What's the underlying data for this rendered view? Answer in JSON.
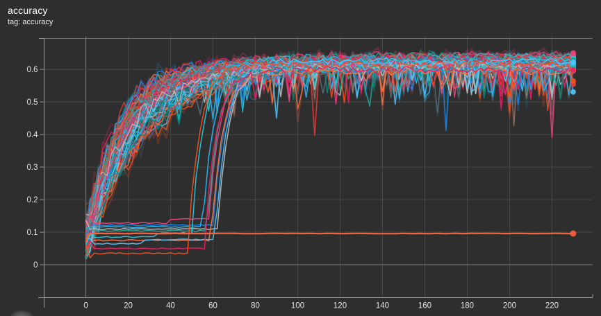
{
  "chart_data": {
    "type": "line",
    "title": "accuracy",
    "subtitle": "tag: accuracy",
    "xlabel": "",
    "ylabel": "",
    "x_range": [
      -19.7,
      239.2
    ],
    "y_range": [
      -0.101,
      0.695
    ],
    "x_ticks": [
      0,
      20,
      40,
      60,
      80,
      100,
      120,
      140,
      160,
      180,
      200,
      220
    ],
    "y_ticks": [
      0,
      0.1,
      0.2,
      0.3,
      0.4,
      0.5,
      0.6
    ],
    "y_tick_labels": [
      "0",
      "0.1",
      "0.2",
      "0.3",
      "0.4",
      "0.5",
      "0.6"
    ],
    "grid": true,
    "legend": "none",
    "seed": 7,
    "colors": {
      "background": "#2e2e2e",
      "grid": "#474747",
      "zero_line": "#7d7d7d",
      "axis": "#9a9a9a",
      "top_border": "#6e6e6e",
      "tick_label": "#e2e2e2",
      "title": "#ffffff",
      "subtitle": "#e8e8e8",
      "palette": [
        "#f4511e",
        "#ff7043",
        "#29b6f6",
        "#26c6da",
        "#4fc3f7",
        "#1e88e5",
        "#ec407a",
        "#e91e63",
        "#26a69a",
        "#00897b",
        "#bdbdbd",
        "#8d6e63",
        "#546e7a",
        "#e53935"
      ]
    },
    "runs": {
      "description": "~53 training runs of scalar 'accuracy' over steps 0-230; most runs converge to ~0.60-0.645 by step ~80 and plateau with noisy dips; ~10 runs stall flat between 0.035 and 0.128 until steps ~48-62 then recover to the plateau; one run stays stuck at ~0.096 for all 230 steps; every run ends with a dot marker at step 230",
      "converging": {
        "count": 42,
        "start_min": 0.03,
        "start_max": 0.12,
        "plateau_min": 0.6,
        "plateau_max": 0.645,
        "tau_min": 14,
        "tau_max": 30,
        "x_end": 230
      },
      "stalled": {
        "levels": [
          0.128,
          0.122,
          0.116,
          0.11,
          0.104,
          0.085,
          0.075,
          0.065,
          0.05,
          0.035
        ],
        "break_x": [
          58,
          60,
          55,
          62,
          57,
          50,
          59,
          61,
          56,
          48
        ],
        "colors": [
          "#ec407a",
          "#1e88e5",
          "#29b6f6",
          "#bdbdbd",
          "#26a69a",
          "#26c6da",
          "#ff7043",
          "#4fc3f7",
          "#e91e63",
          "#f4511e"
        ],
        "plateau_min": 0.59,
        "plateau_max": 0.63,
        "x_end": 230
      },
      "stuck": {
        "value": 0.096,
        "x_start": 0,
        "x_end": 230,
        "color": "#f4623e"
      },
      "end_marker_radius": 4
    }
  }
}
